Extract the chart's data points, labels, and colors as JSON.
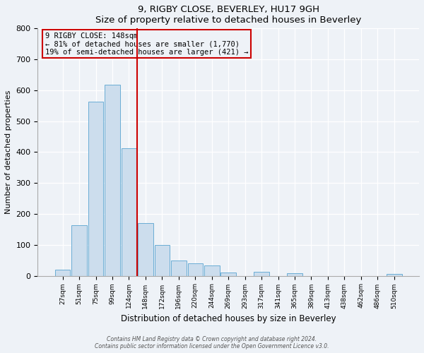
{
  "title": "9, RIGBY CLOSE, BEVERLEY, HU17 9GH",
  "subtitle": "Size of property relative to detached houses in Beverley",
  "xlabel": "Distribution of detached houses by size in Beverley",
  "ylabel": "Number of detached properties",
  "categories": [
    "27sqm",
    "51sqm",
    "75sqm",
    "99sqm",
    "124sqm",
    "148sqm",
    "172sqm",
    "196sqm",
    "220sqm",
    "244sqm",
    "269sqm",
    "293sqm",
    "317sqm",
    "341sqm",
    "365sqm",
    "389sqm",
    "413sqm",
    "438sqm",
    "462sqm",
    "486sqm",
    "510sqm"
  ],
  "values": [
    20,
    163,
    563,
    617,
    413,
    170,
    100,
    50,
    40,
    33,
    10,
    0,
    12,
    0,
    8,
    0,
    0,
    0,
    0,
    0,
    5
  ],
  "bar_color": "#ccdded",
  "bar_edge_color": "#6aadd5",
  "vline_color": "#cc0000",
  "annotation_line1": "9 RIGBY CLOSE: 148sqm",
  "annotation_line2": "← 81% of detached houses are smaller (1,770)",
  "annotation_line3": "19% of semi-detached houses are larger (421) →",
  "annotation_box_edge_color": "#cc0000",
  "ylim": [
    0,
    800
  ],
  "yticks": [
    0,
    100,
    200,
    300,
    400,
    500,
    600,
    700,
    800
  ],
  "footnote1": "Contains HM Land Registry data © Crown copyright and database right 2024.",
  "footnote2": "Contains public sector information licensed under the Open Government Licence v3.0.",
  "bg_color": "#eef2f7",
  "grid_color": "#d8dfe8"
}
